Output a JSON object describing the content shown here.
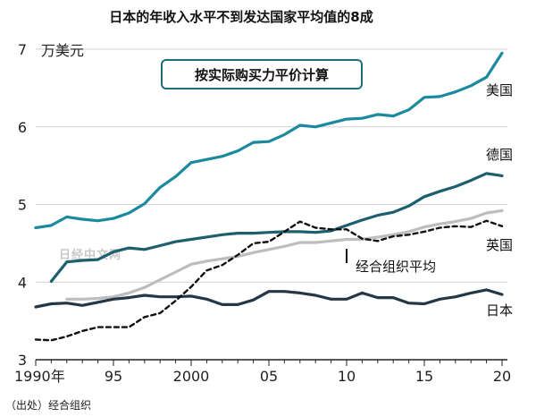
{
  "chart_data": {
    "type": "line",
    "title": "日本的年收入水平不到发达国家平均值的8成",
    "unit_label": "万美元",
    "annotation": "按实际购买力平价计算",
    "source": "（出处）经合组织",
    "watermark": "日经中文网",
    "ylim": [
      3,
      7
    ],
    "y_ticks": [
      "3",
      "4",
      "5",
      "6",
      "7"
    ],
    "xlim": [
      1990,
      2020
    ],
    "x_ticks": [
      {
        "x": 1990,
        "label": "1990年"
      },
      {
        "x": 1995,
        "label": "95"
      },
      {
        "x": 2000,
        "label": "2000"
      },
      {
        "x": 2005,
        "label": "05"
      },
      {
        "x": 2010,
        "label": "10"
      },
      {
        "x": 2015,
        "label": "15"
      },
      {
        "x": 2020,
        "label": "20"
      }
    ],
    "grid": "horizontal",
    "x": [
      1990,
      1991,
      1992,
      1993,
      1994,
      1995,
      1996,
      1997,
      1998,
      1999,
      2000,
      2001,
      2002,
      2003,
      2004,
      2005,
      2006,
      2007,
      2008,
      2009,
      2010,
      2011,
      2012,
      2013,
      2014,
      2015,
      2016,
      2017,
      2018,
      2019,
      2020
    ],
    "series": [
      {
        "name": "美国",
        "color": "#1b8a9e",
        "style": "solid",
        "values": [
          4.7,
          4.73,
          4.84,
          4.81,
          4.79,
          4.82,
          4.89,
          5.01,
          5.22,
          5.36,
          5.54,
          5.58,
          5.62,
          5.69,
          5.8,
          5.81,
          5.9,
          6.02,
          6.0,
          6.05,
          6.1,
          6.11,
          6.16,
          6.14,
          6.22,
          6.38,
          6.39,
          6.45,
          6.53,
          6.64,
          6.95
        ]
      },
      {
        "name": "德国",
        "color": "#1d5f6e",
        "style": "solid",
        "values": [
          null,
          4.01,
          4.26,
          4.28,
          4.29,
          4.39,
          4.44,
          4.42,
          4.47,
          4.52,
          4.55,
          4.58,
          4.61,
          4.63,
          4.63,
          4.64,
          4.65,
          4.65,
          4.64,
          4.66,
          4.73,
          4.8,
          4.86,
          4.9,
          4.98,
          5.1,
          5.17,
          5.23,
          5.31,
          5.4,
          5.37
        ]
      },
      {
        "name": "英国",
        "color": "#bdbdbd",
        "style": "solid",
        "values": [
          null,
          null,
          3.78,
          3.78,
          3.79,
          3.81,
          3.86,
          3.93,
          4.03,
          4.13,
          4.23,
          4.27,
          4.3,
          4.33,
          4.38,
          4.42,
          4.46,
          4.51,
          4.51,
          4.53,
          4.55,
          4.55,
          4.58,
          4.61,
          4.65,
          4.71,
          4.75,
          4.78,
          4.82,
          4.89,
          4.92
        ]
      },
      {
        "name": "经合组织平均",
        "color": "#111111",
        "style": "dashed",
        "values": [
          3.26,
          3.25,
          3.3,
          3.37,
          3.42,
          3.42,
          3.42,
          3.55,
          3.6,
          3.76,
          3.94,
          4.15,
          4.22,
          4.35,
          4.5,
          4.52,
          4.65,
          4.78,
          4.7,
          4.68,
          4.68,
          4.56,
          4.53,
          4.59,
          4.61,
          4.65,
          4.7,
          4.72,
          4.71,
          4.79,
          4.72
        ]
      },
      {
        "name": "日本",
        "color": "#243746",
        "style": "solid",
        "values": [
          3.68,
          3.72,
          3.73,
          3.7,
          3.74,
          3.78,
          3.8,
          3.83,
          3.81,
          3.81,
          3.82,
          3.78,
          3.71,
          3.71,
          3.77,
          3.88,
          3.88,
          3.86,
          3.83,
          3.78,
          3.78,
          3.86,
          3.8,
          3.8,
          3.73,
          3.72,
          3.78,
          3.81,
          3.86,
          3.9,
          3.84
        ]
      }
    ]
  }
}
